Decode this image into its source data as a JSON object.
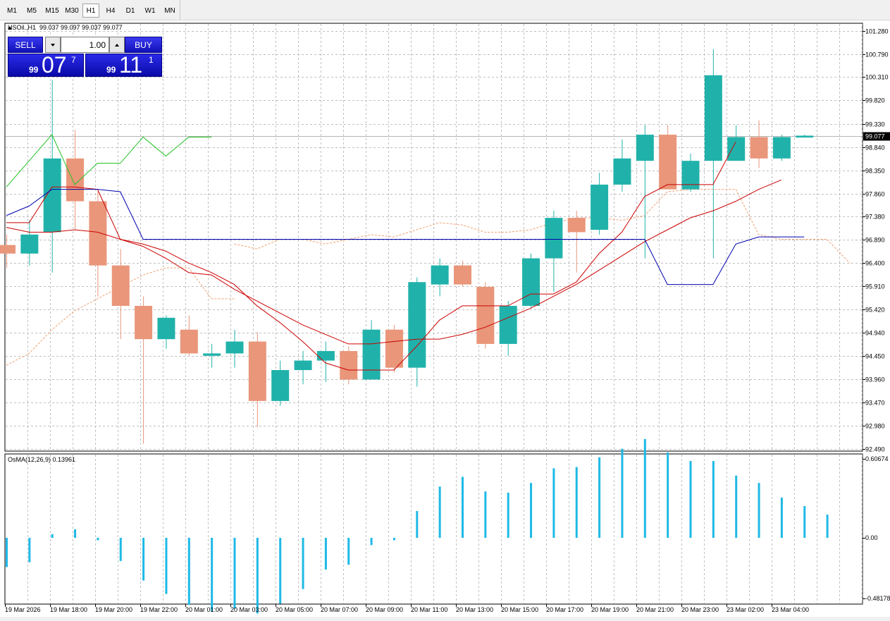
{
  "timeframes": [
    "M1",
    "M5",
    "M15",
    "M30",
    "H1",
    "H4",
    "D1",
    "W1",
    "MN"
  ],
  "active_timeframe": "H1",
  "symbol_info": "USOil.,H1  99.037 99.097 99.037 99.077",
  "trade_panel": {
    "sell_label": "SELL",
    "buy_label": "BUY",
    "lot_value": "1.00",
    "sell_price": {
      "small": "99",
      "big": "07",
      "sup": "7"
    },
    "buy_price": {
      "small": "99",
      "big": "11",
      "sup": "1"
    }
  },
  "colors": {
    "bull": "#20b2aa",
    "bear": "#e9967a",
    "osma": "#1eb9e6",
    "ma_fast": "#cc0000",
    "ma_slow": "#cc0000",
    "blue_line": "#0000b0",
    "green_line": "#22c322",
    "envelope": "#f0a070",
    "grid": "#c0c0c0",
    "bid_line": "#b4b4b4"
  },
  "price_axis": {
    "min": 92.49,
    "max": 101.28,
    "ticks": [
      "101.280",
      "100.790",
      "100.310",
      "99.820",
      "99.330",
      "98.840",
      "98.350",
      "97.860",
      "97.380",
      "96.890",
      "96.400",
      "95.910",
      "95.420",
      "94.940",
      "94.450",
      "93.960",
      "93.470",
      "92.980",
      "92.490"
    ],
    "current_price": "99.077",
    "current_value": 99.077
  },
  "osma": {
    "label": "OsMA(12,26,9) 0.13961",
    "min": -0.48178,
    "max": 0.60674,
    "ticks": [
      "0.60674",
      "0.00",
      "-0.48178"
    ],
    "values": [
      -0.24,
      -0.2,
      0.03,
      0.07,
      -0.02,
      -0.19,
      -0.35,
      -0.46,
      -0.55,
      -0.6,
      -0.58,
      -0.62,
      -0.54,
      -0.42,
      -0.26,
      -0.22,
      -0.06,
      -0.02,
      0.22,
      0.42,
      0.5,
      0.38,
      0.37,
      0.45,
      0.57,
      0.58,
      0.66,
      0.73,
      0.81,
      0.7,
      0.63,
      0.63,
      0.51,
      0.45,
      0.33,
      0.26,
      0.19
    ]
  },
  "time_axis": [
    "19 Mar 2026",
    "19 Mar 18:00",
    "19 Mar 20:00",
    "19 Mar 22:00",
    "20 Mar 01:00",
    "20 Mar 03:00",
    "20 Mar 05:00",
    "20 Mar 07:00",
    "20 Mar 09:00",
    "20 Mar 11:00",
    "20 Mar 13:00",
    "20 Mar 15:00",
    "20 Mar 17:00",
    "20 Mar 19:00",
    "20 Mar 21:00",
    "20 Mar 23:00",
    "23 Mar 02:00",
    "23 Mar 04:00"
  ],
  "chart_data": {
    "type": "candlestick",
    "candles": [
      {
        "o": 96.78,
        "h": 97.0,
        "l": 96.3,
        "c": 96.6
      },
      {
        "o": 96.6,
        "h": 97.3,
        "l": 96.35,
        "c": 97.0
      },
      {
        "o": 97.05,
        "h": 100.25,
        "l": 96.2,
        "c": 98.6
      },
      {
        "o": 98.6,
        "h": 99.2,
        "l": 97.1,
        "c": 97.7
      },
      {
        "o": 97.7,
        "h": 97.9,
        "l": 95.7,
        "c": 96.35
      },
      {
        "o": 96.35,
        "h": 96.7,
        "l": 94.8,
        "c": 95.5
      },
      {
        "o": 95.5,
        "h": 95.7,
        "l": 92.6,
        "c": 94.8
      },
      {
        "o": 94.8,
        "h": 95.3,
        "l": 94.6,
        "c": 95.25
      },
      {
        "o": 95.0,
        "h": 95.3,
        "l": 94.45,
        "c": 94.5
      },
      {
        "o": 94.45,
        "h": 94.7,
        "l": 94.2,
        "c": 94.5
      },
      {
        "o": 94.5,
        "h": 95.0,
        "l": 94.2,
        "c": 94.75
      },
      {
        "o": 94.75,
        "h": 94.95,
        "l": 92.95,
        "c": 93.5
      },
      {
        "o": 93.5,
        "h": 94.35,
        "l": 93.4,
        "c": 94.15
      },
      {
        "o": 94.15,
        "h": 94.55,
        "l": 93.85,
        "c": 94.35
      },
      {
        "o": 94.35,
        "h": 94.75,
        "l": 93.9,
        "c": 94.55
      },
      {
        "o": 94.55,
        "h": 94.65,
        "l": 93.85,
        "c": 93.95
      },
      {
        "o": 93.95,
        "h": 95.2,
        "l": 93.95,
        "c": 95.0
      },
      {
        "o": 95.0,
        "h": 95.1,
        "l": 94.1,
        "c": 94.2
      },
      {
        "o": 94.2,
        "h": 96.1,
        "l": 93.8,
        "c": 96.0
      },
      {
        "o": 95.95,
        "h": 96.5,
        "l": 95.7,
        "c": 96.35
      },
      {
        "o": 96.35,
        "h": 96.45,
        "l": 95.9,
        "c": 95.95
      },
      {
        "o": 95.9,
        "h": 96.0,
        "l": 94.6,
        "c": 94.7
      },
      {
        "o": 94.7,
        "h": 95.6,
        "l": 94.45,
        "c": 95.5
      },
      {
        "o": 95.5,
        "h": 96.6,
        "l": 95.45,
        "c": 96.5
      },
      {
        "o": 96.5,
        "h": 97.5,
        "l": 95.8,
        "c": 97.35
      },
      {
        "o": 97.35,
        "h": 97.5,
        "l": 96.2,
        "c": 97.05
      },
      {
        "o": 97.1,
        "h": 98.3,
        "l": 97.0,
        "c": 98.05
      },
      {
        "o": 98.05,
        "h": 99.0,
        "l": 97.9,
        "c": 98.6
      },
      {
        "o": 98.55,
        "h": 99.3,
        "l": 96.5,
        "c": 99.1
      },
      {
        "o": 99.1,
        "h": 99.3,
        "l": 98.0,
        "c": 97.95
      },
      {
        "o": 97.95,
        "h": 98.7,
        "l": 97.9,
        "c": 98.55
      },
      {
        "o": 98.55,
        "h": 100.9,
        "l": 96.5,
        "c": 100.35
      },
      {
        "o": 98.55,
        "h": 99.3,
        "l": 98.55,
        "c": 99.05
      },
      {
        "o": 99.05,
        "h": 99.4,
        "l": 98.4,
        "c": 98.6
      },
      {
        "o": 98.6,
        "h": 99.1,
        "l": 98.55,
        "c": 99.05
      },
      {
        "o": 99.04,
        "h": 99.1,
        "l": 99.04,
        "c": 99.08
      }
    ],
    "ma_fast": [
      97.25,
      97.25,
      98.0,
      98.0,
      97.95,
      96.9,
      96.8,
      96.65,
      96.4,
      96.2,
      95.95,
      95.5,
      95.15,
      94.75,
      94.3,
      94.15,
      94.15,
      94.15,
      94.65,
      95.2,
      95.5,
      95.5,
      95.5,
      95.75,
      95.75,
      96.0,
      96.6,
      97.05,
      97.8,
      98.05,
      98.05,
      98.05,
      98.95
    ],
    "ma_slow": [
      97.15,
      97.05,
      97.05,
      97.1,
      97.05,
      96.9,
      96.75,
      96.5,
      96.2,
      96.15,
      95.85,
      95.6,
      95.35,
      95.1,
      94.9,
      94.7,
      94.7,
      94.75,
      94.8,
      94.8,
      94.9,
      95.05,
      95.25,
      95.45,
      95.7,
      95.95,
      96.25,
      96.55,
      96.85,
      97.1,
      97.35,
      97.5,
      97.7,
      97.95,
      98.15
    ],
    "blue_line": [
      97.4,
      97.6,
      97.95,
      97.95,
      97.95,
      97.9,
      96.9,
      96.9,
      96.9,
      96.9,
      96.9,
      96.9,
      96.9,
      96.9,
      96.9,
      96.9,
      96.9,
      96.9,
      96.9,
      96.9,
      96.9,
      96.9,
      96.9,
      96.9,
      96.9,
      96.9,
      96.9,
      96.9,
      96.9,
      95.95,
      95.95,
      95.95,
      96.8,
      96.95,
      96.95,
      96.95
    ],
    "green_line": [
      98.0,
      98.55,
      99.1,
      98.05,
      98.5,
      98.5,
      99.05,
      98.65,
      99.05,
      99.05
    ],
    "env_upper": [
      null,
      null,
      null,
      null,
      null,
      null,
      null,
      null,
      null,
      null,
      96.8,
      96.7,
      96.9,
      96.9,
      96.8,
      96.9,
      97.0,
      96.95,
      97.1,
      97.25,
      97.2,
      97.05,
      97.05,
      97.1,
      97.25,
      97.35,
      97.35,
      97.3,
      97.4,
      97.9,
      97.95,
      97.95,
      97.95,
      97.0,
      96.9,
      96.9,
      96.9,
      96.4
    ],
    "env_lower": [
      94.25,
      94.5,
      95.0,
      95.4,
      95.65,
      95.9,
      96.15,
      96.3,
      96.3,
      95.65,
      95.65
    ]
  }
}
